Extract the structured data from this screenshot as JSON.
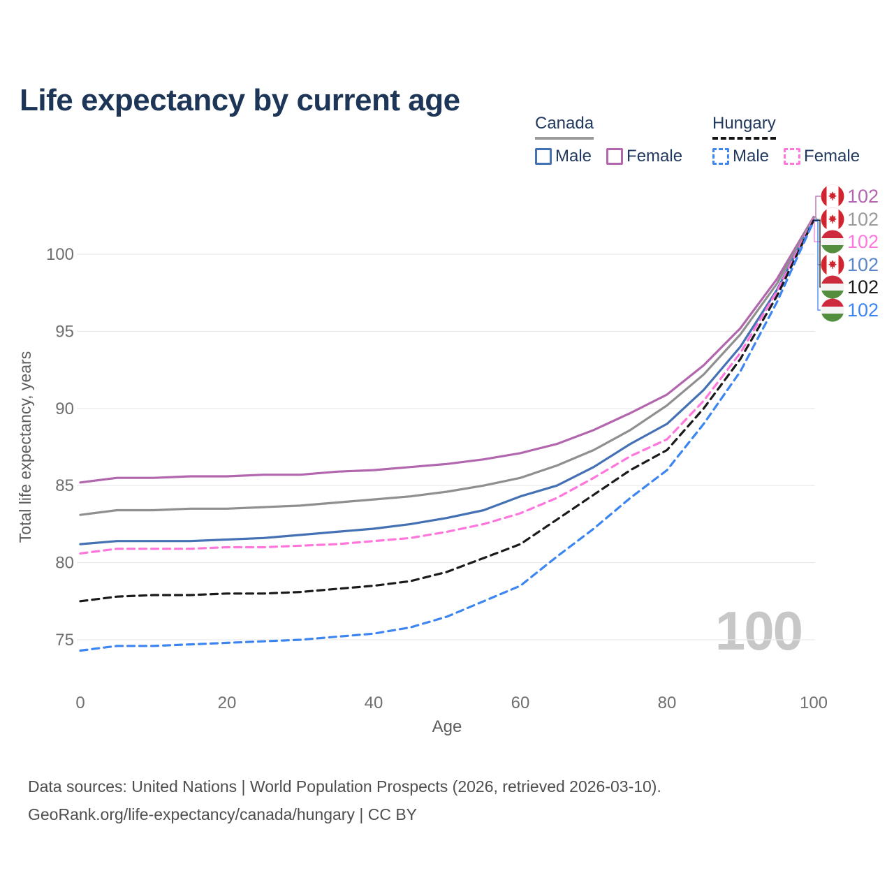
{
  "title": "Life expectancy by current age",
  "legend": {
    "groups": [
      {
        "country": "Canada",
        "style": "solid",
        "line_color": "#9a9a9a",
        "items": [
          {
            "label": "Male",
            "color": "#4470b4"
          },
          {
            "label": "Female",
            "color": "#b266ae"
          }
        ]
      },
      {
        "country": "Hungary",
        "style": "dashed",
        "line_color": "#141414",
        "items": [
          {
            "label": "Male",
            "color": "#3d85f0"
          },
          {
            "label": "Female",
            "color": "#ff77dd"
          }
        ]
      }
    ]
  },
  "chart_data": {
    "type": "line",
    "title": "Life expectancy by current age",
    "xlabel": "Age",
    "ylabel": "Total life expectancy, years",
    "x": [
      0,
      5,
      10,
      15,
      20,
      25,
      30,
      35,
      40,
      45,
      50,
      55,
      60,
      65,
      70,
      75,
      80,
      85,
      90,
      95,
      100
    ],
    "xticks": [
      0,
      20,
      40,
      60,
      80,
      100
    ],
    "yticks": [
      75,
      80,
      85,
      90,
      95,
      100
    ],
    "xlim": [
      0,
      100
    ],
    "ylim": [
      74,
      103
    ],
    "grid": "horizontal-only",
    "legend_position": "top-right",
    "watermark": "100",
    "series": [
      {
        "name": "Canada Female",
        "color": "#b266ae",
        "dash": false,
        "values": [
          85.2,
          85.5,
          85.5,
          85.6,
          85.6,
          85.7,
          85.7,
          85.9,
          86.0,
          86.2,
          86.4,
          86.7,
          87.1,
          87.7,
          88.6,
          89.7,
          90.9,
          92.8,
          95.2,
          98.4,
          102.42
        ]
      },
      {
        "name": "Canada All",
        "color": "#8f8f8f",
        "dash": false,
        "values": [
          83.1,
          83.4,
          83.4,
          83.5,
          83.5,
          83.6,
          83.7,
          83.9,
          84.1,
          84.3,
          84.6,
          85.0,
          85.5,
          86.3,
          87.3,
          88.6,
          90.2,
          92.2,
          94.8,
          98.1,
          102.36
        ]
      },
      {
        "name": "Canada Male",
        "color": "#4470b4",
        "dash": false,
        "values": [
          81.2,
          81.4,
          81.4,
          81.4,
          81.5,
          81.6,
          81.8,
          82.0,
          82.2,
          82.5,
          82.9,
          83.4,
          84.3,
          85.0,
          86.2,
          87.7,
          89.0,
          91.2,
          94.0,
          97.7,
          102.26
        ]
      },
      {
        "name": "Hungary Female",
        "color": "#ff77dd",
        "dash": true,
        "values": [
          80.6,
          80.9,
          80.9,
          80.9,
          81.0,
          81.0,
          81.1,
          81.2,
          81.4,
          81.6,
          82.0,
          82.5,
          83.2,
          84.2,
          85.5,
          86.9,
          88.0,
          90.5,
          93.6,
          97.6,
          102.3
        ]
      },
      {
        "name": "Hungary All",
        "color": "#1a1a1a",
        "dash": true,
        "values": [
          77.5,
          77.8,
          77.9,
          77.9,
          78.0,
          78.0,
          78.1,
          78.3,
          78.5,
          78.8,
          79.4,
          80.3,
          81.2,
          82.8,
          84.4,
          86.0,
          87.3,
          90.0,
          93.2,
          97.3,
          102.2
        ]
      },
      {
        "name": "Hungary Male",
        "color": "#3d85f0",
        "dash": true,
        "values": [
          74.3,
          74.6,
          74.6,
          74.7,
          74.8,
          74.9,
          75.0,
          75.2,
          75.4,
          75.8,
          76.5,
          77.5,
          78.5,
          80.4,
          82.2,
          84.2,
          86.0,
          89.0,
          92.4,
          96.9,
          102.14
        ]
      }
    ],
    "end_labels": [
      {
        "text": "102",
        "flag": "canada",
        "color": "#b266ae"
      },
      {
        "text": "102",
        "flag": "canada",
        "color": "#9a9a9a"
      },
      {
        "text": "102",
        "flag": "hungary",
        "color": "#ff77dd"
      },
      {
        "text": "102",
        "flag": "canada",
        "color": "#5b86c8"
      },
      {
        "text": "102",
        "flag": "hungary",
        "color": "#1a1a1a"
      },
      {
        "text": "102",
        "flag": "hungary",
        "color": "#3d85f0"
      }
    ]
  },
  "footer": {
    "line1": "Data sources: United Nations | World Population Prospects (2026, retrieved 2026-03-10).",
    "line2": "GeoRank.org/life-expectancy/canada/hungary | CC BY"
  }
}
